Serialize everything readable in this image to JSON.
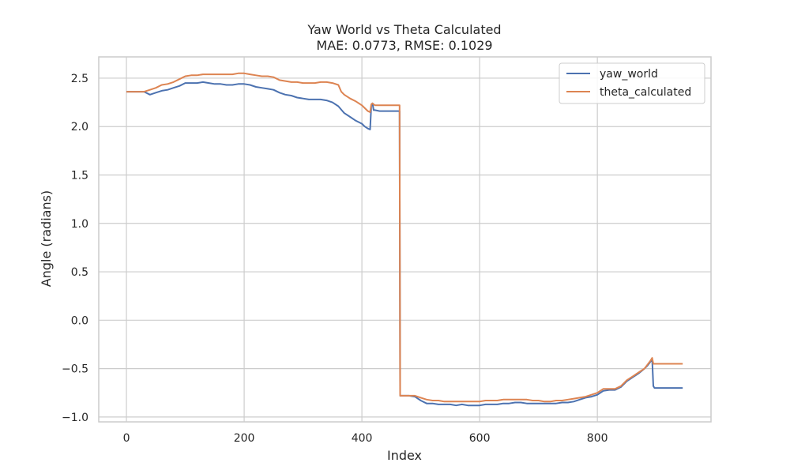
{
  "chart_data": {
    "type": "line",
    "title_line1": "Yaw World vs Theta Calculated",
    "title_line2": "MAE: 0.0773, RMSE: 0.1029",
    "xlabel": "Index",
    "ylabel": "Angle (radians)",
    "xlim": [
      -47,
      993
    ],
    "ylim": [
      -1.05,
      2.72
    ],
    "xticks": [
      0,
      200,
      400,
      600,
      800
    ],
    "yticks": [
      -1.0,
      -0.5,
      0.0,
      0.5,
      1.0,
      1.5,
      2.0,
      2.5
    ],
    "xtick_labels": [
      "0",
      "200",
      "400",
      "600",
      "800"
    ],
    "ytick_labels": [
      "−1.0",
      "−0.5",
      "0.0",
      "0.5",
      "1.0",
      "1.5",
      "2.0",
      "2.5"
    ],
    "grid": true,
    "legend_position": "top-right",
    "series": [
      {
        "name": "yaw_world",
        "color": "#4c72b0",
        "x": [
          0,
          30,
          40,
          50,
          60,
          70,
          80,
          90,
          100,
          110,
          120,
          130,
          140,
          150,
          160,
          170,
          180,
          190,
          200,
          210,
          220,
          230,
          240,
          250,
          260,
          270,
          280,
          290,
          300,
          310,
          320,
          330,
          340,
          350,
          360,
          370,
          380,
          390,
          400,
          405,
          410,
          414,
          416,
          418,
          420,
          422,
          430,
          440,
          450,
          460,
          464,
          465,
          466,
          480,
          490,
          500,
          510,
          520,
          530,
          540,
          550,
          560,
          570,
          580,
          590,
          600,
          610,
          620,
          630,
          640,
          650,
          660,
          670,
          680,
          690,
          700,
          710,
          720,
          730,
          740,
          750,
          760,
          770,
          780,
          790,
          800,
          810,
          820,
          830,
          840,
          850,
          860,
          870,
          880,
          885,
          890,
          893,
          895,
          897,
          900,
          910,
          920,
          930,
          940,
          945
        ],
        "y": [
          2.36,
          2.36,
          2.33,
          2.35,
          2.37,
          2.38,
          2.4,
          2.42,
          2.45,
          2.45,
          2.45,
          2.46,
          2.45,
          2.44,
          2.44,
          2.43,
          2.43,
          2.44,
          2.44,
          2.43,
          2.41,
          2.4,
          2.39,
          2.38,
          2.35,
          2.33,
          2.32,
          2.3,
          2.29,
          2.28,
          2.28,
          2.28,
          2.27,
          2.25,
          2.21,
          2.14,
          2.1,
          2.06,
          2.03,
          2.0,
          1.98,
          1.97,
          2.22,
          2.24,
          2.17,
          2.17,
          2.16,
          2.16,
          2.16,
          2.16,
          2.16,
          -0.78,
          -0.78,
          -0.78,
          -0.79,
          -0.83,
          -0.86,
          -0.86,
          -0.87,
          -0.87,
          -0.87,
          -0.88,
          -0.87,
          -0.88,
          -0.88,
          -0.88,
          -0.87,
          -0.87,
          -0.87,
          -0.86,
          -0.86,
          -0.85,
          -0.85,
          -0.86,
          -0.86,
          -0.86,
          -0.86,
          -0.86,
          -0.86,
          -0.85,
          -0.85,
          -0.84,
          -0.82,
          -0.8,
          -0.79,
          -0.77,
          -0.73,
          -0.72,
          -0.72,
          -0.69,
          -0.63,
          -0.59,
          -0.55,
          -0.5,
          -0.47,
          -0.43,
          -0.4,
          -0.68,
          -0.7,
          -0.7,
          -0.7,
          -0.7,
          -0.7,
          -0.7,
          -0.7
        ]
      },
      {
        "name": "theta_calculated",
        "color": "#dd8452",
        "x": [
          0,
          30,
          40,
          50,
          60,
          70,
          80,
          90,
          100,
          110,
          120,
          130,
          140,
          150,
          160,
          170,
          180,
          190,
          200,
          210,
          220,
          230,
          240,
          250,
          260,
          270,
          280,
          290,
          300,
          310,
          320,
          330,
          340,
          350,
          360,
          365,
          370,
          380,
          390,
          400,
          405,
          410,
          414,
          416,
          418,
          420,
          422,
          430,
          440,
          450,
          460,
          464,
          465,
          466,
          480,
          490,
          500,
          510,
          520,
          530,
          540,
          550,
          560,
          570,
          580,
          590,
          600,
          610,
          620,
          630,
          640,
          650,
          660,
          670,
          680,
          690,
          700,
          710,
          720,
          730,
          740,
          750,
          760,
          770,
          780,
          790,
          800,
          810,
          820,
          830,
          840,
          850,
          860,
          870,
          880,
          885,
          890,
          893,
          895,
          897,
          900,
          910,
          920,
          930,
          940,
          945
        ],
        "y": [
          2.36,
          2.36,
          2.38,
          2.4,
          2.43,
          2.44,
          2.46,
          2.49,
          2.52,
          2.53,
          2.53,
          2.54,
          2.54,
          2.54,
          2.54,
          2.54,
          2.54,
          2.55,
          2.55,
          2.54,
          2.53,
          2.52,
          2.52,
          2.51,
          2.48,
          2.47,
          2.46,
          2.46,
          2.45,
          2.45,
          2.45,
          2.46,
          2.46,
          2.45,
          2.43,
          2.36,
          2.33,
          2.29,
          2.26,
          2.22,
          2.19,
          2.16,
          2.15,
          2.23,
          2.24,
          2.23,
          2.22,
          2.22,
          2.22,
          2.22,
          2.22,
          2.22,
          -0.78,
          -0.78,
          -0.78,
          -0.78,
          -0.8,
          -0.82,
          -0.83,
          -0.83,
          -0.84,
          -0.84,
          -0.84,
          -0.84,
          -0.84,
          -0.84,
          -0.84,
          -0.83,
          -0.83,
          -0.83,
          -0.82,
          -0.82,
          -0.82,
          -0.82,
          -0.82,
          -0.83,
          -0.83,
          -0.84,
          -0.84,
          -0.83,
          -0.83,
          -0.82,
          -0.81,
          -0.8,
          -0.79,
          -0.77,
          -0.75,
          -0.71,
          -0.71,
          -0.71,
          -0.68,
          -0.62,
          -0.58,
          -0.54,
          -0.5,
          -0.46,
          -0.42,
          -0.39,
          -0.45,
          -0.45,
          -0.45,
          -0.45,
          -0.45,
          -0.45,
          -0.45,
          -0.45
        ]
      }
    ]
  }
}
